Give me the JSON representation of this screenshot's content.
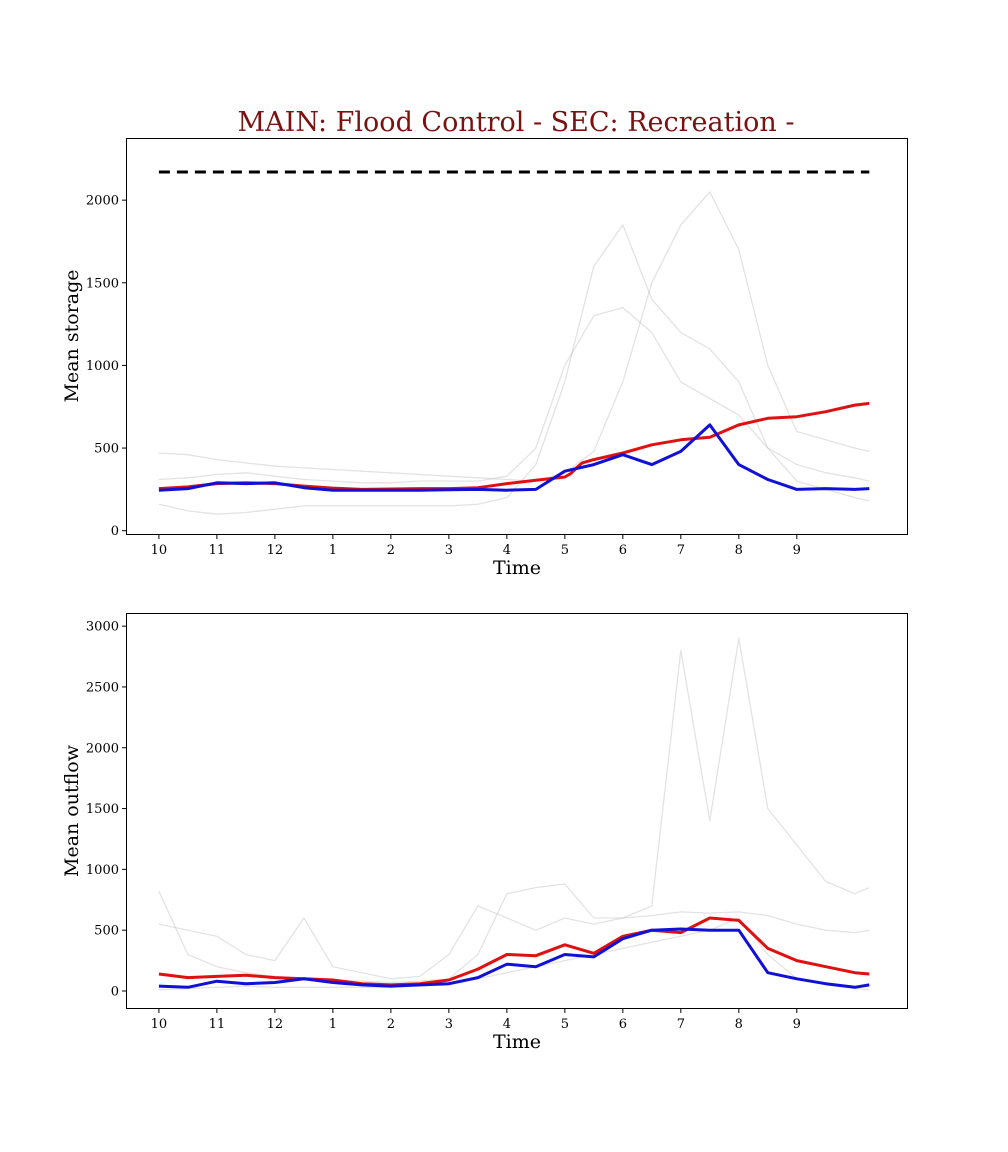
{
  "figure": {
    "title": "MAIN: Flood Control - SEC: Recreation -",
    "title_color": "#7a1212"
  },
  "colors": {
    "ensemble": "#b0b0b0",
    "red_series": "#e01010",
    "blue_series": "#1010d8",
    "capacity_line": "#000000"
  },
  "chart_data": [
    {
      "type": "line",
      "title": "",
      "xlabel": "Time",
      "ylabel": "Mean storage",
      "xticks": [
        "10",
        "11",
        "12",
        "1",
        "2",
        "3",
        "4",
        "5",
        "6",
        "7",
        "8",
        "9"
      ],
      "xlim": [
        -0.55,
        12.9
      ],
      "ylim": [
        -20,
        2370
      ],
      "yticks": [
        0,
        500,
        1000,
        1500,
        2000
      ],
      "grid": false,
      "capacity_line": {
        "value": 2170,
        "style": "dashed"
      },
      "series": [
        {
          "color": "#e01010",
          "x": [
            0,
            0.5,
            1,
            1.5,
            2,
            2.5,
            3,
            3.5,
            4,
            4.5,
            5,
            5.5,
            6,
            6.5,
            7,
            7.1,
            7.2,
            7.3,
            7.5,
            8,
            8.5,
            9,
            9.5,
            10,
            10.5,
            11,
            11.5,
            12,
            12.25
          ],
          "y": [
            255,
            265,
            285,
            290,
            285,
            270,
            258,
            250,
            252,
            255,
            255,
            260,
            285,
            305,
            325,
            345,
            380,
            410,
            430,
            470,
            520,
            550,
            565,
            640,
            680,
            690,
            720,
            760,
            770
          ]
        },
        {
          "color": "#1010d8",
          "x": [
            0,
            0.5,
            1,
            1.5,
            2,
            2.5,
            3,
            3.5,
            4,
            4.5,
            5,
            5.5,
            6,
            6.5,
            7,
            7.5,
            8,
            8.5,
            9,
            9.5,
            10,
            10.5,
            11,
            11.5,
            12,
            12.25
          ],
          "y": [
            245,
            255,
            290,
            285,
            290,
            260,
            245,
            245,
            245,
            245,
            248,
            250,
            245,
            250,
            360,
            400,
            460,
            400,
            480,
            640,
            400,
            310,
            250,
            255,
            250,
            255
          ]
        },
        {
          "color": "#b0b0b0",
          "x": [
            0,
            0.5,
            1,
            1.5,
            2,
            2.5,
            3,
            3.5,
            4,
            4.5,
            5,
            5.5,
            6,
            6.5,
            7,
            7.5,
            8,
            8.5,
            9,
            9.5,
            10,
            10.5,
            11,
            11.5,
            12,
            12.25
          ],
          "y": [
            470,
            460,
            430,
            410,
            390,
            380,
            370,
            360,
            350,
            340,
            330,
            320,
            310,
            300,
            350,
            480,
            900,
            1500,
            1850,
            2050,
            1700,
            1000,
            600,
            550,
            500,
            480
          ]
        },
        {
          "color": "#b0b0b0",
          "x": [
            0,
            0.5,
            1,
            1.5,
            2,
            2.5,
            3,
            3.5,
            4,
            4.5,
            5,
            5.5,
            6,
            6.5,
            7,
            7.5,
            8,
            8.5,
            9,
            9.5,
            10,
            10.5,
            11,
            11.5,
            12,
            12.25
          ],
          "y": [
            310,
            320,
            340,
            350,
            330,
            310,
            300,
            290,
            290,
            300,
            300,
            300,
            330,
            500,
            1000,
            1300,
            1350,
            1200,
            900,
            800,
            700,
            500,
            400,
            350,
            320,
            300
          ]
        },
        {
          "color": "#b0b0b0",
          "x": [
            0,
            0.5,
            1,
            1.5,
            2,
            2.5,
            3,
            3.5,
            4,
            4.5,
            5,
            5.5,
            6,
            6.5,
            7,
            7.5,
            8,
            8.5,
            9,
            9.5,
            10,
            10.5,
            11,
            11.5,
            12,
            12.25
          ],
          "y": [
            160,
            120,
            100,
            110,
            130,
            150,
            150,
            150,
            150,
            150,
            150,
            160,
            200,
            400,
            900,
            1600,
            1850,
            1400,
            1200,
            1100,
            900,
            500,
            300,
            250,
            200,
            180
          ]
        }
      ]
    },
    {
      "type": "line",
      "title": "",
      "xlabel": "Time",
      "ylabel": "Mean outflow",
      "xticks": [
        "10",
        "11",
        "12",
        "1",
        "2",
        "3",
        "4",
        "5",
        "6",
        "7",
        "8",
        "9"
      ],
      "xlim": [
        -0.55,
        12.9
      ],
      "ylim": [
        -140,
        3100
      ],
      "yticks": [
        0,
        500,
        1000,
        1500,
        2000,
        2500,
        3000
      ],
      "grid": false,
      "series": [
        {
          "color": "#e01010",
          "x": [
            0,
            0.5,
            1,
            1.5,
            2,
            2.5,
            3,
            3.5,
            4,
            4.5,
            5,
            5.5,
            6,
            6.5,
            7,
            7.5,
            8,
            8.5,
            9,
            9.5,
            10,
            10.5,
            11,
            11.5,
            12,
            12.25
          ],
          "y": [
            140,
            110,
            120,
            130,
            110,
            100,
            90,
            60,
            50,
            60,
            90,
            180,
            300,
            290,
            380,
            310,
            450,
            500,
            480,
            600,
            580,
            350,
            250,
            200,
            150,
            140
          ]
        },
        {
          "color": "#1010d8",
          "x": [
            0,
            0.5,
            1,
            1.5,
            2,
            2.5,
            3,
            3.5,
            4,
            4.5,
            5,
            5.5,
            6,
            6.5,
            7,
            7.5,
            8,
            8.5,
            9,
            9.5,
            10,
            10.5,
            11,
            11.5,
            12,
            12.25
          ],
          "y": [
            40,
            30,
            80,
            60,
            70,
            100,
            70,
            50,
            40,
            50,
            60,
            110,
            220,
            200,
            300,
            280,
            430,
            500,
            510,
            500,
            500,
            150,
            100,
            60,
            30,
            50
          ]
        },
        {
          "color": "#b0b0b0",
          "x": [
            0,
            0.5,
            1,
            1.5,
            2,
            2.5,
            3,
            3.5,
            4,
            4.5,
            5,
            5.5,
            6,
            6.5,
            7,
            7.5,
            8,
            8.5,
            9,
            9.5,
            10,
            10.5,
            11,
            11.5,
            12,
            12.25
          ],
          "y": [
            820,
            300,
            200,
            150,
            120,
            100,
            90,
            80,
            70,
            80,
            100,
            300,
            800,
            850,
            880,
            600,
            600,
            700,
            2800,
            1400,
            2900,
            1500,
            1200,
            900,
            800,
            850
          ]
        },
        {
          "color": "#b0b0b0",
          "x": [
            0,
            0.5,
            1,
            1.5,
            2,
            2.5,
            3,
            3.5,
            4,
            4.5,
            5,
            5.5,
            6,
            6.5,
            7,
            7.5,
            8,
            8.5,
            9,
            9.5,
            10,
            10.5,
            11,
            11.5,
            12,
            12.25
          ],
          "y": [
            550,
            500,
            450,
            300,
            250,
            600,
            200,
            150,
            100,
            120,
            300,
            700,
            600,
            500,
            600,
            550,
            600,
            620,
            650,
            640,
            650,
            620,
            550,
            500,
            480,
            500
          ]
        },
        {
          "color": "#b0b0b0",
          "x": [
            0,
            0.5,
            1,
            1.5,
            2,
            2.5,
            3,
            3.5,
            4,
            4.5,
            5,
            5.5,
            6,
            6.5,
            7,
            7.5,
            8,
            8.5,
            9,
            9.5,
            10,
            10.5,
            11,
            11.5,
            12,
            12.25
          ],
          "y": [
            10,
            20,
            30,
            40,
            30,
            30,
            30,
            30,
            30,
            40,
            50,
            100,
            150,
            200,
            250,
            300,
            350,
            400,
            450,
            500,
            600,
            300,
            100,
            50,
            20,
            10
          ]
        }
      ]
    }
  ]
}
